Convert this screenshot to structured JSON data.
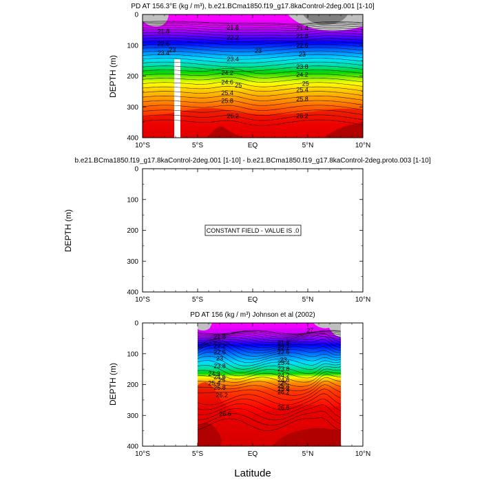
{
  "chart_data": [
    {
      "type": "heatmap",
      "title": "PD AT 156.3°E (kg / m³), b.e21.BCma1850.f19_g17.8kaControl-2deg.001 [1-10]",
      "ylabel": "DEPTH (m)",
      "xlabel": "",
      "xlim": [
        -10,
        10
      ],
      "ylim": [
        400,
        0
      ],
      "x_ticks": [
        -10,
        -5,
        0,
        5,
        10
      ],
      "x_tick_labels": [
        "10°S",
        "5°S",
        "EQ",
        "5°N",
        "10°N"
      ],
      "y_ticks": [
        0,
        100,
        200,
        300,
        400
      ],
      "y_tick_labels": [
        "0",
        "100",
        "200",
        "300",
        "400"
      ],
      "levels": [
        21.2,
        21.4,
        21.6,
        21.8,
        22,
        22.2,
        22.4,
        22.6,
        22.8,
        23,
        23.2,
        23.4,
        23.6,
        23.8,
        24,
        24.2,
        24.4,
        24.6,
        24.8,
        25,
        25.2,
        25.4,
        25.6,
        25.8,
        26,
        26.2,
        26.4,
        26.6,
        26.8
      ],
      "contour_labels": [
        {
          "text": "21.8",
          "x": -8.1,
          "y": 55
        },
        {
          "text": "22.6",
          "x": -8.1,
          "y": 95
        },
        {
          "text": "23.4",
          "x": -8.1,
          "y": 125
        },
        {
          "text": "23",
          "x": -7.3,
          "y": 115
        },
        {
          "text": "21.8",
          "x": -1.8,
          "y": 42
        },
        {
          "text": "22.2",
          "x": -1.8,
          "y": 75
        },
        {
          "text": "23.4",
          "x": -1.8,
          "y": 145
        },
        {
          "text": "23",
          "x": 0.5,
          "y": 118
        },
        {
          "text": "24.2",
          "x": -2.3,
          "y": 190
        },
        {
          "text": "24.6",
          "x": -2.3,
          "y": 220
        },
        {
          "text": "25",
          "x": -1.3,
          "y": 230
        },
        {
          "text": "25.4",
          "x": -2.3,
          "y": 255
        },
        {
          "text": "25.8",
          "x": -2.3,
          "y": 280
        },
        {
          "text": "26.2",
          "x": -1.8,
          "y": 330
        },
        {
          "text": "21.4",
          "x": 4.5,
          "y": 45
        },
        {
          "text": "21.8",
          "x": 4.5,
          "y": 70
        },
        {
          "text": "22.6",
          "x": 4.5,
          "y": 100
        },
        {
          "text": "23",
          "x": 4.5,
          "y": 130
        },
        {
          "text": "23.8",
          "x": 4.5,
          "y": 170
        },
        {
          "text": "24.2",
          "x": 4.5,
          "y": 195
        },
        {
          "text": "25",
          "x": 4.8,
          "y": 225
        },
        {
          "text": "25.4",
          "x": 4.5,
          "y": 245
        },
        {
          "text": "25.8",
          "x": 4.5,
          "y": 275
        },
        {
          "text": "26.2",
          "x": 4.5,
          "y": 330
        }
      ],
      "missing_regions": "column near 8°S below ~140 m; gray undefined patches at surface near 8°S and 5°N-8°N"
    },
    {
      "type": "heatmap",
      "title": "b.e21.BCma1850.f19_g17.8kaControl-2deg.001 [1-10] - b.e21.BCma1850.f19_g17.8kaControl-2deg.proto.003 [1-10]",
      "ylabel": "DEPTH (m)",
      "xlim": [
        -10,
        10
      ],
      "ylim": [
        400,
        0
      ],
      "x_ticks": [
        -10,
        -5,
        0,
        5,
        10
      ],
      "x_tick_labels": [
        "10°S",
        "5°S",
        "EQ",
        "5°N",
        "10°N"
      ],
      "y_ticks": [
        0,
        100,
        200,
        300,
        400
      ],
      "y_tick_labels": [
        "0",
        "100",
        "200",
        "300",
        "400"
      ],
      "annotation": "CONSTANT FIELD - VALUE IS .0"
    },
    {
      "type": "heatmap",
      "title": "PD AT 156 (kg / m³) Johnson et al (2002)",
      "ylabel": "DEPTH (m)",
      "xlabel": "Latitude",
      "xlim": [
        -10,
        10
      ],
      "ylim": [
        400,
        0
      ],
      "data_x_range": [
        -5,
        8
      ],
      "x_ticks": [
        -10,
        -5,
        0,
        5,
        10
      ],
      "x_tick_labels": [
        "10°S",
        "5°S",
        "EQ",
        "5°N",
        "10°N"
      ],
      "y_ticks": [
        0,
        100,
        200,
        300,
        400
      ],
      "y_tick_labels": [
        "0",
        "100",
        "200",
        "300",
        "400"
      ],
      "levels": [
        21.2,
        21.4,
        21.6,
        21.8,
        22,
        22.2,
        22.4,
        22.6,
        22.8,
        23,
        23.2,
        23.4,
        23.6,
        23.8,
        24,
        24.2,
        24.4,
        24.6,
        24.8,
        25,
        25.2,
        25.4,
        25.6,
        25.8,
        26,
        26.2,
        26.4,
        26.6,
        26.8
      ],
      "contour_labels": [
        {
          "text": "21.8",
          "x": -3.0,
          "y": 45
        },
        {
          "text": "22.2",
          "x": -3.0,
          "y": 75
        },
        {
          "text": "22.6",
          "x": -3.0,
          "y": 95
        },
        {
          "text": "23",
          "x": -3.0,
          "y": 115
        },
        {
          "text": "23.8",
          "x": -3.0,
          "y": 140
        },
        {
          "text": "24.2",
          "x": -3.5,
          "y": 165
        },
        {
          "text": "24.6",
          "x": -3.0,
          "y": 175
        },
        {
          "text": "25",
          "x": -2.8,
          "y": 185
        },
        {
          "text": "25.4",
          "x": -3.5,
          "y": 195
        },
        {
          "text": "25.8",
          "x": -3.0,
          "y": 210
        },
        {
          "text": "26.2",
          "x": -2.8,
          "y": 235
        },
        {
          "text": "26.6",
          "x": -2.5,
          "y": 295
        },
        {
          "text": "21.8",
          "x": 2.8,
          "y": 65
        },
        {
          "text": "22.2",
          "x": 2.8,
          "y": 80
        },
        {
          "text": "22.6",
          "x": 2.8,
          "y": 95
        },
        {
          "text": "23",
          "x": 2.8,
          "y": 120
        },
        {
          "text": "23.4",
          "x": 2.8,
          "y": 130
        },
        {
          "text": "23.8",
          "x": 2.8,
          "y": 150
        },
        {
          "text": "24.2",
          "x": 2.8,
          "y": 170
        },
        {
          "text": "24.6",
          "x": 2.8,
          "y": 185
        },
        {
          "text": "25",
          "x": 2.8,
          "y": 195
        },
        {
          "text": "25.4",
          "x": 2.8,
          "y": 205
        },
        {
          "text": "25.8",
          "x": 2.8,
          "y": 215
        },
        {
          "text": "26.2",
          "x": 2.8,
          "y": 225
        },
        {
          "text": "26.6",
          "x": 2.8,
          "y": 275
        },
        {
          "text": "27",
          "x": 5.2,
          "y": 25
        }
      ]
    }
  ],
  "figure": {
    "xlabel": "Latitude"
  },
  "colors": {
    "magenta": "#ff00ff",
    "blue": "#0000ff",
    "cyan": "#00e0ff",
    "green": "#00dd00",
    "yellow": "#ffff00",
    "orange": "#ff8c00",
    "red": "#ff1a00",
    "darkred": "#a00000",
    "missing": "#bfbfbf"
  }
}
